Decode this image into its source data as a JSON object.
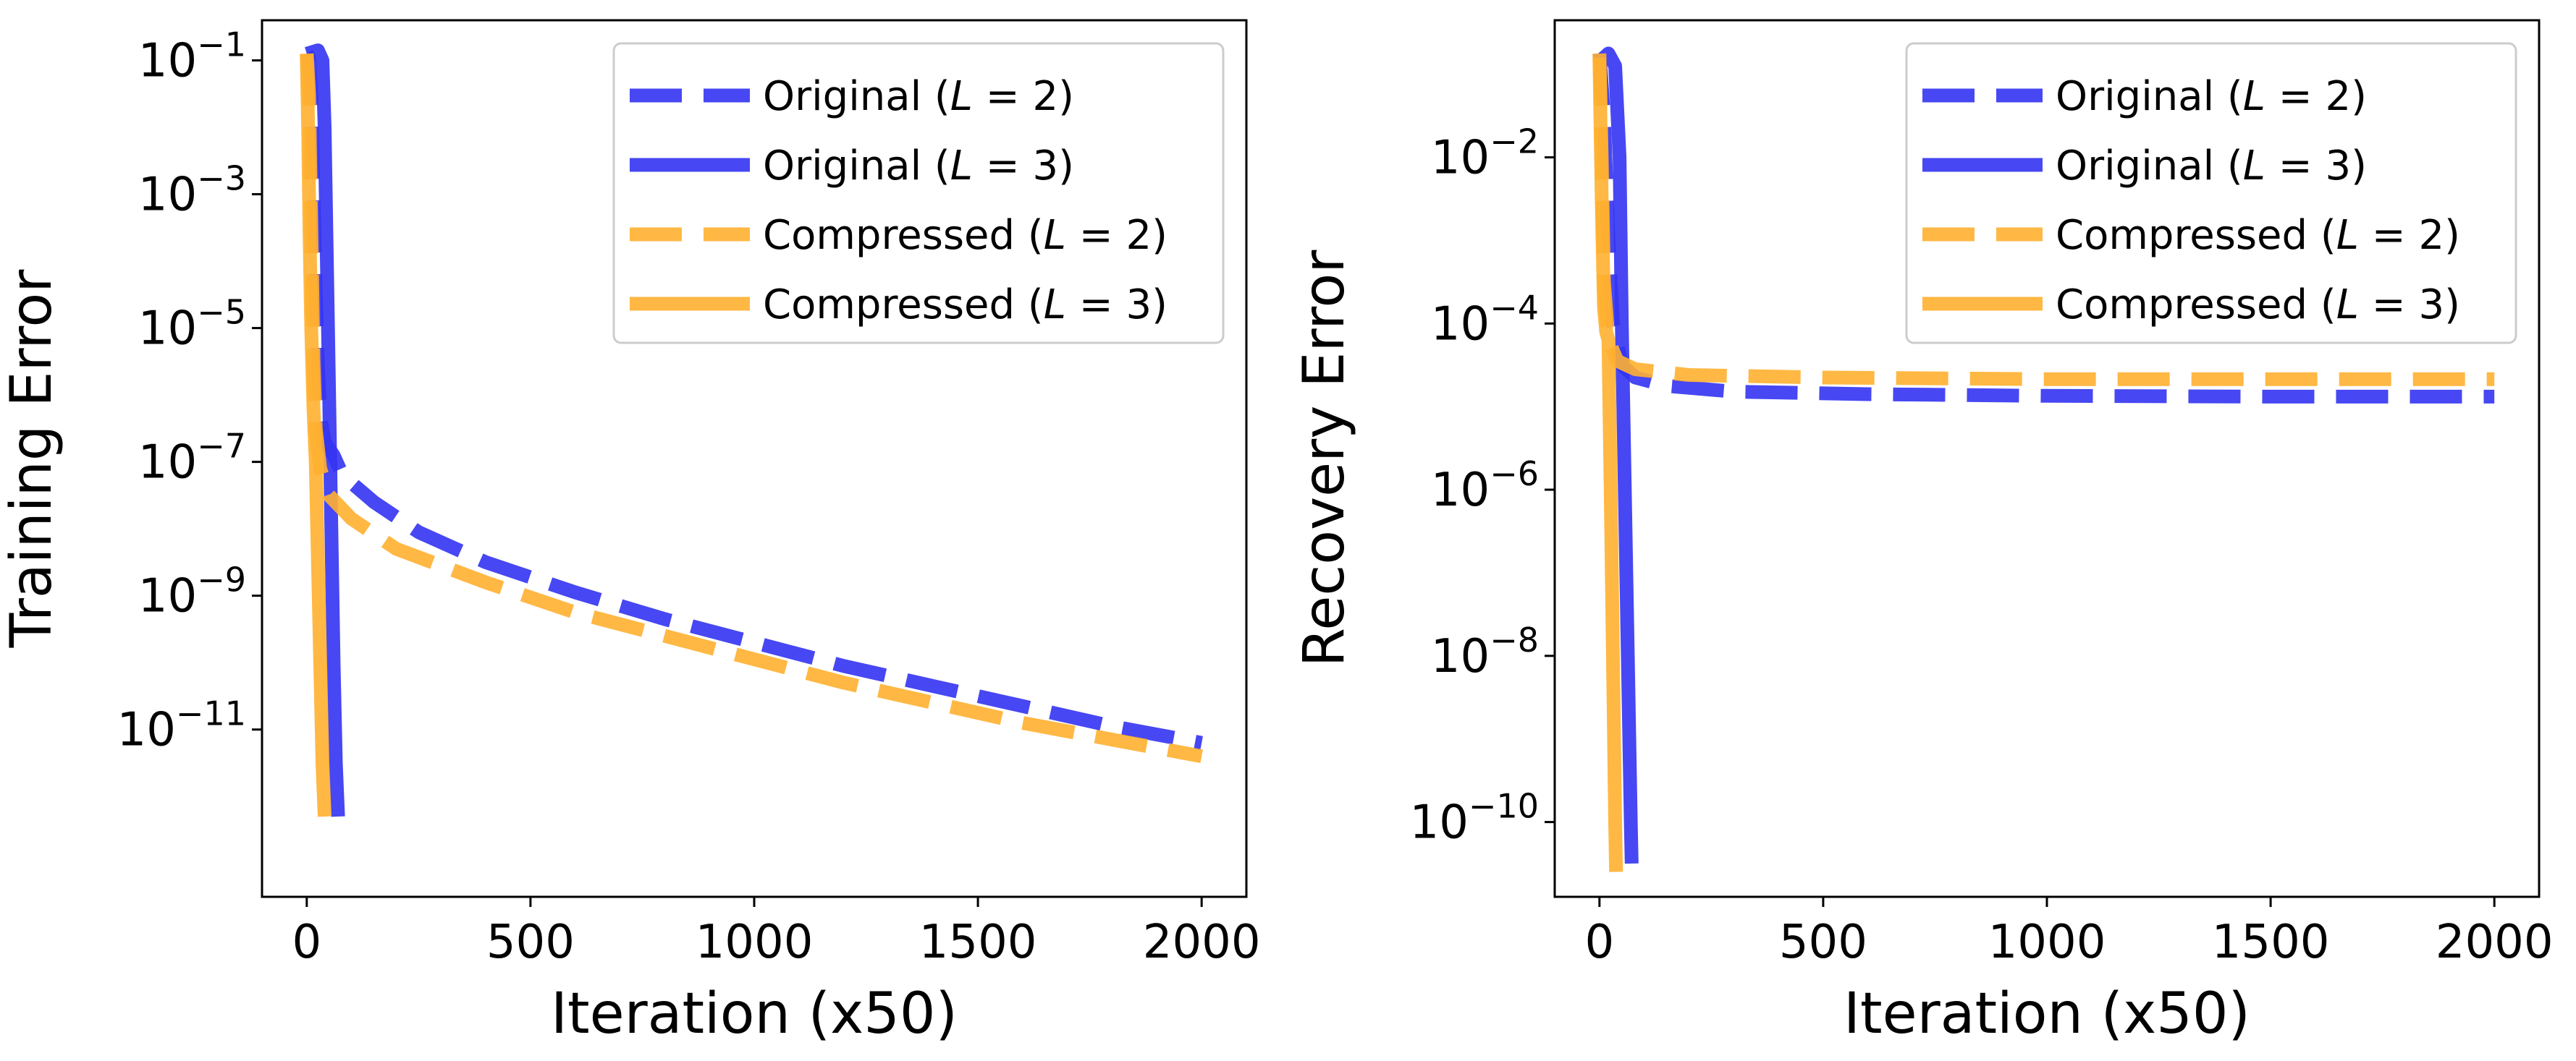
{
  "chart_data": [
    {
      "type": "line",
      "yscale": "log",
      "xlabel": "Iteration (x50)",
      "ylabel": "Training Error",
      "xlim": [
        -100,
        2100
      ],
      "ylim_exp": [
        -13.5,
        -0.4
      ],
      "xticks": [
        0,
        500,
        1000,
        1500,
        2000
      ],
      "yticks_exp": [
        -1,
        -3,
        -5,
        -7,
        -9,
        -11
      ],
      "legend_position": "top-right",
      "series": [
        {
          "name": "Original (L = 2)",
          "label_prefix": "Original (",
          "label_var": "L",
          "label_suffix": " = 2)",
          "color": "#3333f2",
          "dash": true,
          "points": [
            [
              0,
              -0.9
            ],
            [
              5,
              -0.95
            ],
            [
              10,
              -1.5
            ],
            [
              15,
              -3.0
            ],
            [
              20,
              -4.5
            ],
            [
              25,
              -5.6
            ],
            [
              30,
              -6.3
            ],
            [
              40,
              -6.7
            ],
            [
              60,
              -6.9
            ],
            [
              80,
              -7.2
            ],
            [
              150,
              -7.6
            ],
            [
              250,
              -8.05
            ],
            [
              400,
              -8.5
            ],
            [
              600,
              -8.95
            ],
            [
              800,
              -9.35
            ],
            [
              1000,
              -9.7
            ],
            [
              1200,
              -10.05
            ],
            [
              1400,
              -10.35
            ],
            [
              1600,
              -10.65
            ],
            [
              1800,
              -10.95
            ],
            [
              2000,
              -11.2
            ]
          ]
        },
        {
          "name": "Original (L = 3)",
          "label_prefix": "Original (",
          "label_var": "L",
          "label_suffix": " = 3)",
          "color": "#3333f2",
          "dash": false,
          "points": [
            [
              0,
              -0.9
            ],
            [
              25,
              -0.85
            ],
            [
              35,
              -1.0
            ],
            [
              40,
              -2.0
            ],
            [
              45,
              -4.0
            ],
            [
              50,
              -6.0
            ],
            [
              55,
              -8.0
            ],
            [
              60,
              -10.0
            ],
            [
              65,
              -11.5
            ],
            [
              70,
              -12.3
            ]
          ]
        },
        {
          "name": "Compressed (L = 2)",
          "label_prefix": "Compressed (",
          "label_var": "L",
          "label_suffix": " = 2)",
          "color": "#ffb030",
          "dash": true,
          "points": [
            [
              0,
              -0.9
            ],
            [
              5,
              -1.5
            ],
            [
              10,
              -3.5
            ],
            [
              15,
              -5.5
            ],
            [
              20,
              -6.5
            ],
            [
              30,
              -7.1
            ],
            [
              50,
              -7.5
            ],
            [
              100,
              -7.85
            ],
            [
              200,
              -8.3
            ],
            [
              400,
              -8.8
            ],
            [
              600,
              -9.25
            ],
            [
              800,
              -9.6
            ],
            [
              1000,
              -9.95
            ],
            [
              1200,
              -10.3
            ],
            [
              1400,
              -10.6
            ],
            [
              1600,
              -10.9
            ],
            [
              1800,
              -11.15
            ],
            [
              2000,
              -11.4
            ]
          ]
        },
        {
          "name": "Compressed (L = 3)",
          "label_prefix": "Compressed (",
          "label_var": "L",
          "label_suffix": " = 3)",
          "color": "#ffb030",
          "dash": false,
          "points": [
            [
              0,
              -0.9
            ],
            [
              3,
              -2.0
            ],
            [
              6,
              -3.5
            ],
            [
              10,
              -5.0
            ],
            [
              15,
              -6.2
            ],
            [
              20,
              -7.0
            ],
            [
              25,
              -8.5
            ],
            [
              30,
              -10.0
            ],
            [
              35,
              -11.5
            ],
            [
              40,
              -12.3
            ]
          ]
        }
      ]
    },
    {
      "type": "line",
      "yscale": "log",
      "xlabel": "Iteration (x50)",
      "ylabel": "Recovery Error",
      "xlim": [
        -100,
        2100
      ],
      "ylim_exp": [
        -10.9,
        -0.35
      ],
      "xticks": [
        0,
        500,
        1000,
        1500,
        2000
      ],
      "yticks_exp": [
        -2,
        -4,
        -6,
        -8,
        -10
      ],
      "legend_position": "top-right",
      "series": [
        {
          "name": "Original (L = 2)",
          "label_prefix": "Original (",
          "label_var": "L",
          "label_suffix": " = 2)",
          "color": "#3333f2",
          "dash": true,
          "points": [
            [
              0,
              -0.75
            ],
            [
              10,
              -1.5
            ],
            [
              20,
              -3.0
            ],
            [
              30,
              -4.0
            ],
            [
              50,
              -4.5
            ],
            [
              80,
              -4.65
            ],
            [
              150,
              -4.75
            ],
            [
              300,
              -4.82
            ],
            [
              600,
              -4.85
            ],
            [
              1000,
              -4.87
            ],
            [
              1500,
              -4.88
            ],
            [
              2000,
              -4.88
            ]
          ]
        },
        {
          "name": "Original (L = 3)",
          "label_prefix": "Original (",
          "label_var": "L",
          "label_suffix": " = 3)",
          "color": "#3333f2",
          "dash": false,
          "points": [
            [
              0,
              -0.85
            ],
            [
              20,
              -0.75
            ],
            [
              35,
              -0.9
            ],
            [
              45,
              -2.0
            ],
            [
              50,
              -4.0
            ],
            [
              55,
              -5.5
            ],
            [
              60,
              -7.0
            ],
            [
              65,
              -8.5
            ],
            [
              70,
              -10.0
            ],
            [
              72,
              -10.5
            ]
          ]
        },
        {
          "name": "Compressed (L = 2)",
          "label_prefix": "Compressed (",
          "label_var": "L",
          "label_suffix": " = 2)",
          "color": "#ffb030",
          "dash": true,
          "points": [
            [
              0,
              -0.75
            ],
            [
              5,
              -2.0
            ],
            [
              10,
              -3.5
            ],
            [
              20,
              -4.2
            ],
            [
              40,
              -4.45
            ],
            [
              80,
              -4.55
            ],
            [
              200,
              -4.62
            ],
            [
              500,
              -4.65
            ],
            [
              1000,
              -4.67
            ],
            [
              1500,
              -4.67
            ],
            [
              2000,
              -4.67
            ]
          ]
        },
        {
          "name": "Compressed (L = 3)",
          "label_prefix": "Compressed (",
          "label_var": "L",
          "label_suffix": " = 3)",
          "color": "#ffb030",
          "dash": false,
          "points": [
            [
              0,
              -0.8
            ],
            [
              5,
              -2.5
            ],
            [
              10,
              -3.8
            ],
            [
              15,
              -4.1
            ],
            [
              20,
              -4.2
            ],
            [
              25,
              -6.0
            ],
            [
              30,
              -8.0
            ],
            [
              35,
              -10.0
            ],
            [
              37,
              -10.6
            ]
          ]
        }
      ]
    }
  ]
}
